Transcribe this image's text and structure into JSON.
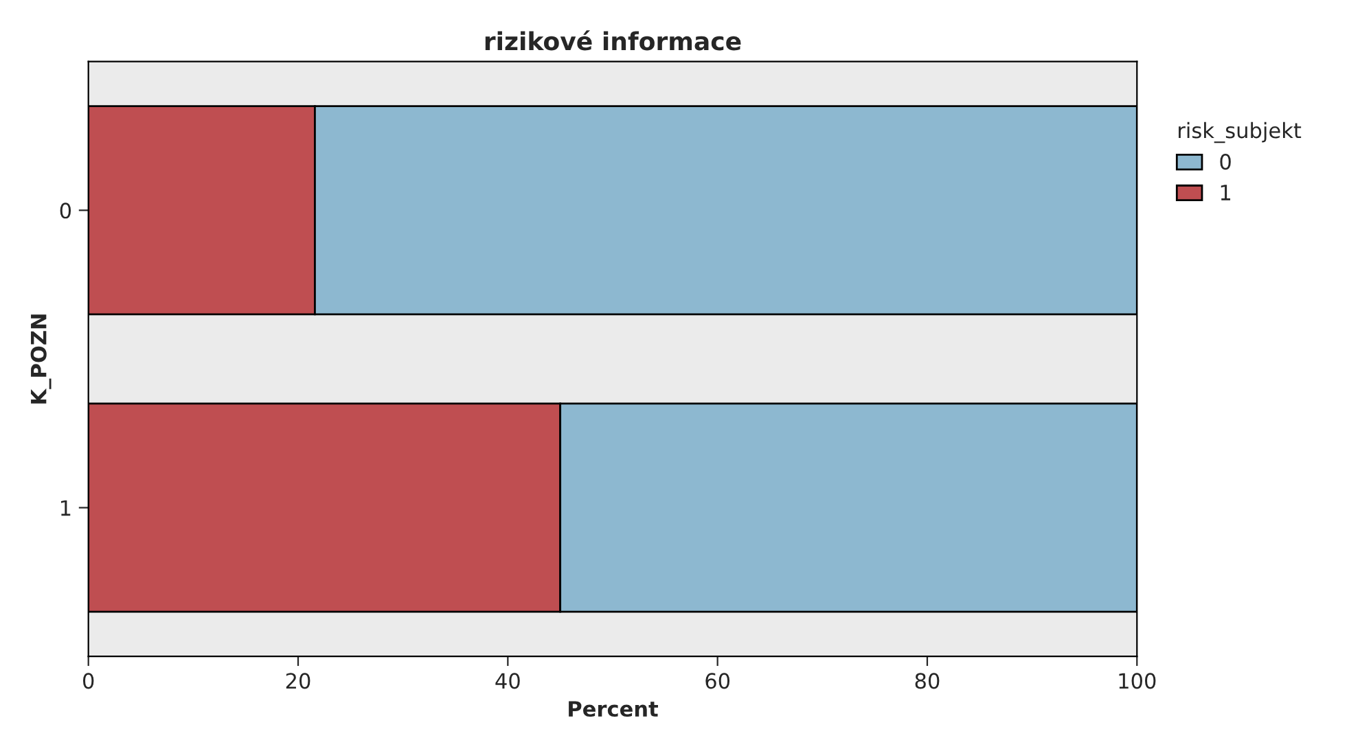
{
  "chart_data": {
    "type": "bar",
    "orientation": "horizontal",
    "stacked": true,
    "title": "rizikové informace",
    "xlabel": "Percent",
    "ylabel": "K_POZN",
    "legend_title": "risk_subjekt",
    "legend": "top right",
    "categories": [
      "0",
      "1"
    ],
    "series": [
      {
        "name": "1",
        "color": "#bf4e51",
        "values": [
          21.6,
          45.0
        ]
      },
      {
        "name": "0",
        "color": "#8db8d0",
        "values": [
          78.4,
          55.0
        ]
      }
    ],
    "xlim": [
      0,
      100
    ],
    "xticks": [
      0,
      20,
      40,
      60,
      80,
      100
    ],
    "grid": false
  }
}
